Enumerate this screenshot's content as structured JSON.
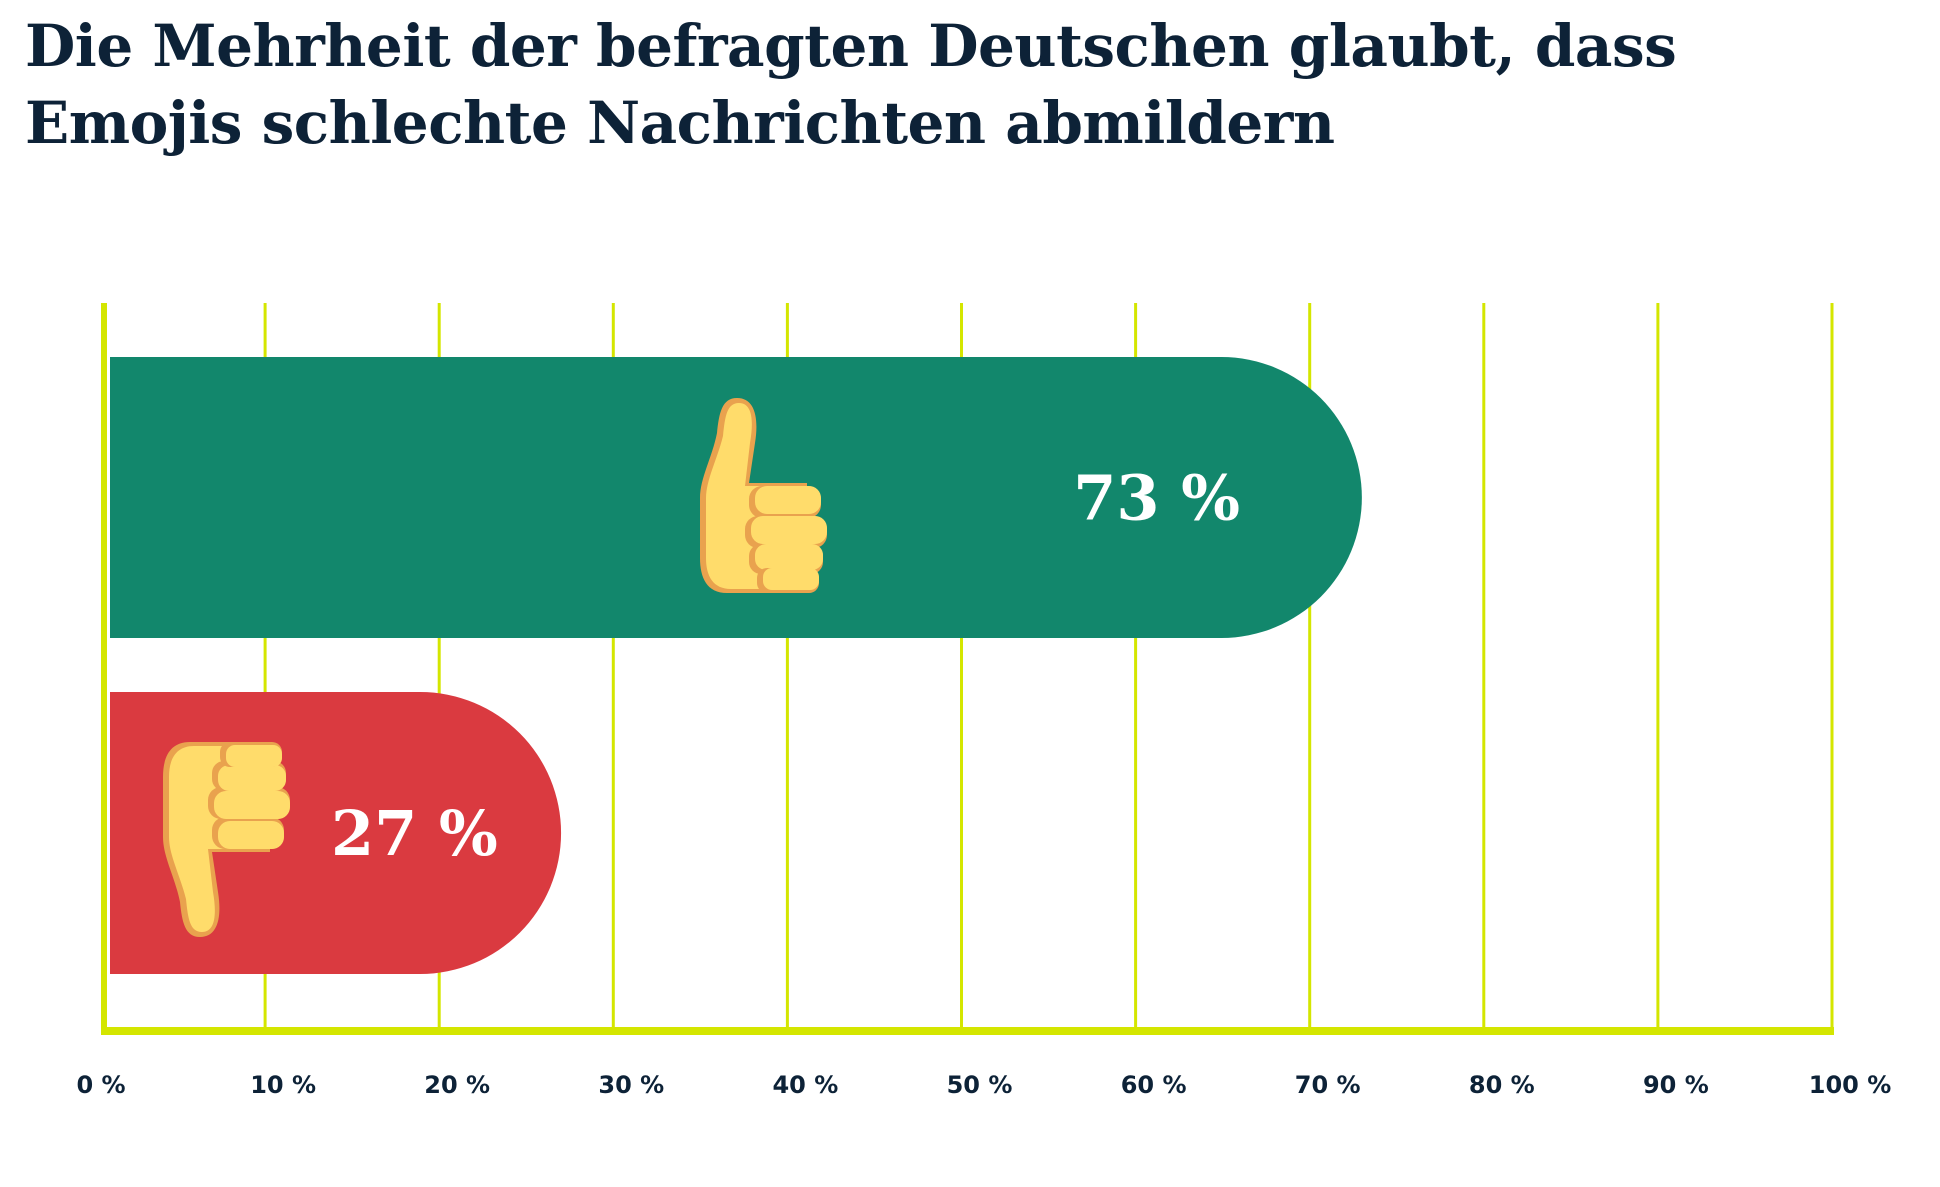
{
  "title": "Die Mehrheit der befragten Deutschen glaubt, dass Emojis schlechte Nachrichten abmildern",
  "chart_data": {
    "type": "bar",
    "orientation": "horizontal",
    "title": "Die Mehrheit der befragten Deutschen glaubt, dass Emojis schlechte Nachrichten abmildern",
    "categories": [
      "thumbs-up",
      "thumbs-down"
    ],
    "values": [
      73,
      27
    ],
    "value_labels": [
      "73 %",
      "27 %"
    ],
    "colors": [
      "#12876c",
      "#da3a40"
    ],
    "icons": [
      "thumbs-up-icon",
      "thumbs-down-icon"
    ],
    "xlim": [
      0,
      100
    ],
    "xticks": [
      0,
      10,
      20,
      30,
      40,
      50,
      60,
      70,
      80,
      90,
      100
    ],
    "xtick_labels": [
      "0 %",
      "10 %",
      "20 %",
      "30 %",
      "40 %",
      "50 %",
      "60 %",
      "70 %",
      "80 %",
      "90 %",
      "100 %"
    ],
    "grid": true,
    "grid_color": "#d4e600",
    "xlabel": "",
    "ylabel": ""
  }
}
